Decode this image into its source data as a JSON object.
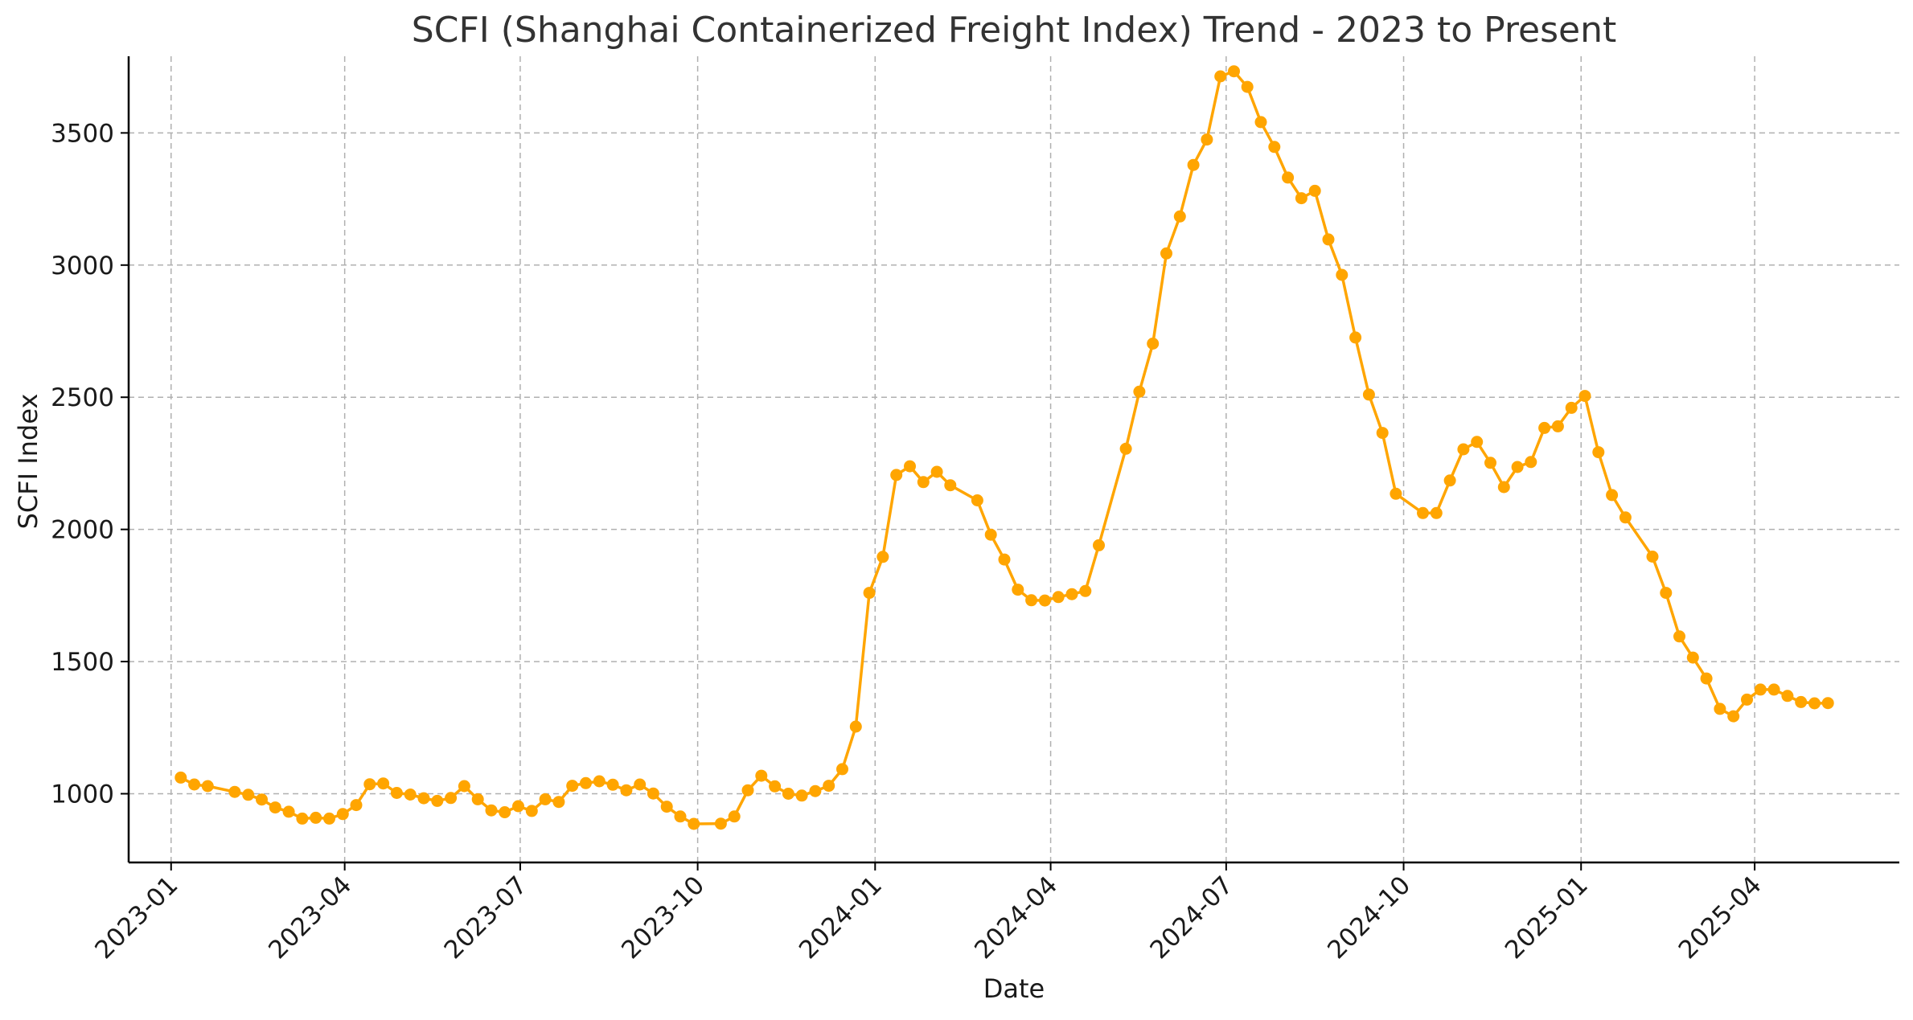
{
  "chart_data": {
    "type": "line",
    "title": "SCFI (Shanghai Containerized Freight Index) Trend - 2023 to Present",
    "xlabel": "Date",
    "ylabel": "SCFI Index",
    "x_ticks": [
      {
        "date": "2023-01-01",
        "label": "2023-01"
      },
      {
        "date": "2023-04-01",
        "label": "2023-04"
      },
      {
        "date": "2023-07-01",
        "label": "2023-07"
      },
      {
        "date": "2023-10-01",
        "label": "2023-10"
      },
      {
        "date": "2024-01-01",
        "label": "2024-01"
      },
      {
        "date": "2024-04-01",
        "label": "2024-04"
      },
      {
        "date": "2024-07-01",
        "label": "2024-07"
      },
      {
        "date": "2024-10-01",
        "label": "2024-10"
      },
      {
        "date": "2025-01-01",
        "label": "2025-01"
      },
      {
        "date": "2025-04-01",
        "label": "2025-04"
      }
    ],
    "y_ticks": [
      1000,
      1500,
      2000,
      2500,
      3000,
      3500
    ],
    "xlim": [
      "2022-12-10",
      "2025-06-15"
    ],
    "ylim": [
      740,
      3790
    ],
    "grid": true,
    "line_color": "#FFA500",
    "series": [
      {
        "points": [
          [
            "2023-01-06",
            1061
          ],
          [
            "2023-01-13",
            1035
          ],
          [
            "2023-01-20",
            1029
          ],
          [
            "2023-02-03",
            1007
          ],
          [
            "2023-02-10",
            996
          ],
          [
            "2023-02-17",
            978
          ],
          [
            "2023-02-24",
            948
          ],
          [
            "2023-03-03",
            932
          ],
          [
            "2023-03-10",
            906
          ],
          [
            "2023-03-17",
            909
          ],
          [
            "2023-03-24",
            906
          ],
          [
            "2023-03-31",
            923
          ],
          [
            "2023-04-07",
            957
          ],
          [
            "2023-04-14",
            1036
          ],
          [
            "2023-04-21",
            1039
          ],
          [
            "2023-04-28",
            1003
          ],
          [
            "2023-05-05",
            997
          ],
          [
            "2023-05-12",
            983
          ],
          [
            "2023-05-19",
            973
          ],
          [
            "2023-05-26",
            984
          ],
          [
            "2023-06-02",
            1029
          ],
          [
            "2023-06-09",
            979
          ],
          [
            "2023-06-16",
            937
          ],
          [
            "2023-06-23",
            930
          ],
          [
            "2023-06-30",
            953
          ],
          [
            "2023-07-07",
            935
          ],
          [
            "2023-07-14",
            979
          ],
          [
            "2023-07-21",
            969
          ],
          [
            "2023-07-28",
            1030
          ],
          [
            "2023-08-04",
            1040
          ],
          [
            "2023-08-11",
            1047
          ],
          [
            "2023-08-18",
            1034
          ],
          [
            "2023-08-25",
            1013
          ],
          [
            "2023-09-01",
            1035
          ],
          [
            "2023-09-08",
            1001
          ],
          [
            "2023-09-15",
            951
          ],
          [
            "2023-09-22",
            914
          ],
          [
            "2023-09-29",
            886
          ],
          [
            "2023-10-13",
            887
          ],
          [
            "2023-10-20",
            914
          ],
          [
            "2023-10-27",
            1013
          ],
          [
            "2023-11-03",
            1068
          ],
          [
            "2023-11-10",
            1028
          ],
          [
            "2023-11-17",
            1000
          ],
          [
            "2023-11-24",
            993
          ],
          [
            "2023-12-01",
            1010
          ],
          [
            "2023-12-08",
            1030
          ],
          [
            "2023-12-15",
            1093
          ],
          [
            "2023-12-22",
            1254
          ],
          [
            "2023-12-29",
            1760
          ],
          [
            "2024-01-05",
            1896
          ],
          [
            "2024-01-12",
            2206
          ],
          [
            "2024-01-19",
            2239
          ],
          [
            "2024-01-26",
            2179
          ],
          [
            "2024-02-02",
            2218
          ],
          [
            "2024-02-09",
            2167
          ],
          [
            "2024-02-23",
            2110
          ],
          [
            "2024-03-01",
            1980
          ],
          [
            "2024-03-08",
            1886
          ],
          [
            "2024-03-15",
            1772
          ],
          [
            "2024-03-22",
            1732
          ],
          [
            "2024-03-29",
            1731
          ],
          [
            "2024-04-05",
            1744
          ],
          [
            "2024-04-12",
            1755
          ],
          [
            "2024-04-19",
            1767
          ],
          [
            "2024-04-26",
            1940
          ],
          [
            "2024-05-10",
            2305
          ],
          [
            "2024-05-17",
            2521
          ],
          [
            "2024-05-24",
            2703
          ],
          [
            "2024-05-31",
            3044
          ],
          [
            "2024-06-07",
            3184
          ],
          [
            "2024-06-14",
            3379
          ],
          [
            "2024-06-21",
            3475
          ],
          [
            "2024-06-28",
            3714
          ],
          [
            "2024-07-05",
            3733
          ],
          [
            "2024-07-12",
            3674
          ],
          [
            "2024-07-19",
            3541
          ],
          [
            "2024-07-26",
            3447
          ],
          [
            "2024-08-02",
            3331
          ],
          [
            "2024-08-09",
            3253
          ],
          [
            "2024-08-16",
            3281
          ],
          [
            "2024-08-23",
            3097
          ],
          [
            "2024-08-30",
            2963
          ],
          [
            "2024-09-06",
            2726
          ],
          [
            "2024-09-13",
            2510
          ],
          [
            "2024-09-20",
            2365
          ],
          [
            "2024-09-27",
            2135
          ],
          [
            "2024-10-11",
            2062
          ],
          [
            "2024-10-18",
            2062
          ],
          [
            "2024-10-25",
            2185
          ],
          [
            "2024-11-01",
            2303
          ],
          [
            "2024-11-08",
            2331
          ],
          [
            "2024-11-15",
            2252
          ],
          [
            "2024-11-22",
            2160
          ],
          [
            "2024-11-29",
            2236
          ],
          [
            "2024-12-06",
            2255
          ],
          [
            "2024-12-13",
            2384
          ],
          [
            "2024-12-20",
            2390
          ],
          [
            "2024-12-27",
            2460
          ],
          [
            "2025-01-03",
            2505
          ],
          [
            "2025-01-10",
            2292
          ],
          [
            "2025-01-17",
            2130
          ],
          [
            "2025-01-24",
            2045
          ],
          [
            "2025-02-07",
            1897
          ],
          [
            "2025-02-14",
            1760
          ],
          [
            "2025-02-21",
            1595
          ],
          [
            "2025-02-28",
            1515
          ],
          [
            "2025-03-07",
            1436
          ],
          [
            "2025-03-14",
            1321
          ],
          [
            "2025-03-21",
            1293
          ],
          [
            "2025-03-28",
            1356
          ],
          [
            "2025-04-04",
            1394
          ],
          [
            "2025-04-11",
            1394
          ],
          [
            "2025-04-18",
            1370
          ],
          [
            "2025-04-25",
            1347
          ],
          [
            "2025-05-02",
            1342
          ],
          [
            "2025-05-09",
            1343
          ]
        ]
      }
    ]
  }
}
